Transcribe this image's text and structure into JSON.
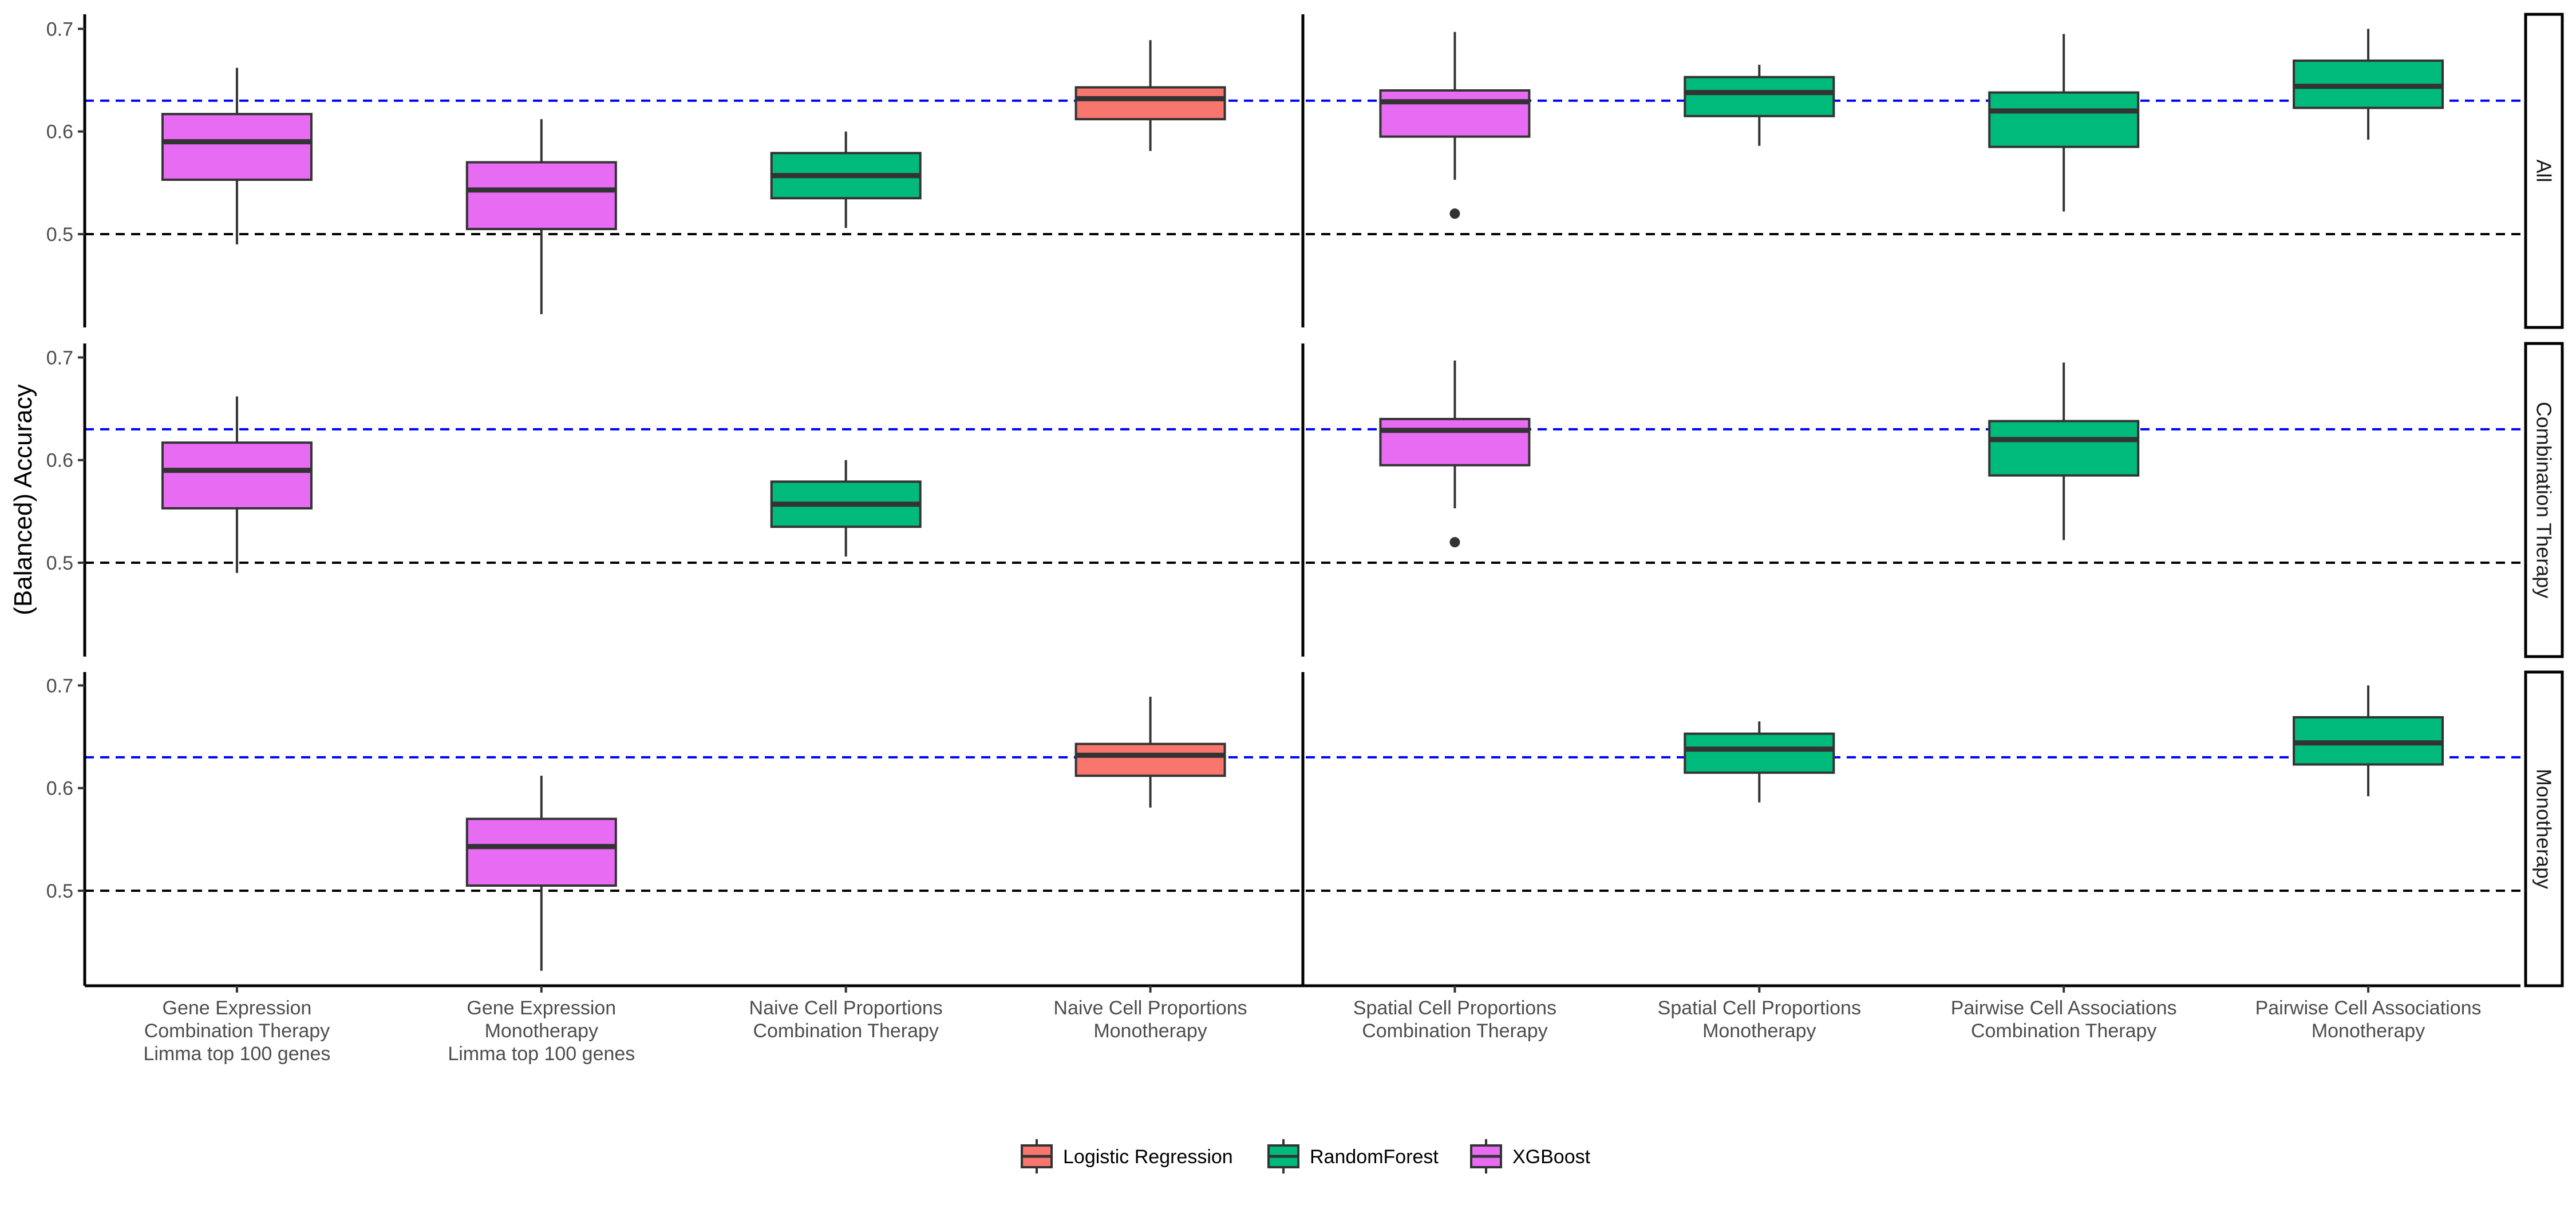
{
  "chart_data": {
    "type": "boxplot",
    "ylabel": "(Balanced) Accuracy",
    "y_ticks": [
      0.5,
      0.6,
      0.7
    ],
    "ylim": [
      0.41,
      0.715
    ],
    "reference_lines": [
      {
        "value": 0.5,
        "color": "#000000",
        "style": "dashed"
      },
      {
        "value": 0.63,
        "color": "#0000ff",
        "style": "dashed"
      }
    ],
    "categories": [
      {
        "lines": [
          "Gene Expression",
          "Combination Therapy",
          "Limma top 100 genes"
        ]
      },
      {
        "lines": [
          "Gene Expression",
          "Monotherapy",
          "Limma top 100 genes"
        ]
      },
      {
        "lines": [
          "Naive Cell Proportions",
          "Combination Therapy"
        ]
      },
      {
        "lines": [
          "Naive Cell Proportions",
          "Monotherapy"
        ]
      },
      {
        "lines": [
          "Spatial Cell Proportions",
          "Combination Therapy"
        ]
      },
      {
        "lines": [
          "Spatial Cell Proportions",
          "Monotherapy"
        ]
      },
      {
        "lines": [
          "Pairwise Cell Associations",
          "Combination Therapy"
        ]
      },
      {
        "lines": [
          "Pairwise Cell Associations",
          "Monotherapy"
        ]
      }
    ],
    "legend": {
      "position": "bottom",
      "items": [
        {
          "label": "Logistic Regression",
          "color": "#f8766d"
        },
        {
          "label": "RandomForest",
          "color": "#00ba7c"
        },
        {
          "label": "XGBoost",
          "color": "#e76bf3"
        }
      ]
    },
    "panels": [
      {
        "label": "All",
        "boxes": [
          {
            "category": 0,
            "model": "XGBoost",
            "min": 0.49,
            "q1": 0.553,
            "median": 0.59,
            "q3": 0.617,
            "max": 0.662,
            "outliers": []
          },
          {
            "category": 1,
            "model": "XGBoost",
            "min": 0.422,
            "q1": 0.505,
            "median": 0.543,
            "q3": 0.57,
            "max": 0.612,
            "outliers": []
          },
          {
            "category": 2,
            "model": "RandomForest",
            "min": 0.506,
            "q1": 0.535,
            "median": 0.557,
            "q3": 0.579,
            "max": 0.6,
            "outliers": []
          },
          {
            "category": 3,
            "model": "Logistic Regression",
            "min": 0.581,
            "q1": 0.612,
            "median": 0.632,
            "q3": 0.643,
            "max": 0.689,
            "outliers": []
          },
          {
            "category": 4,
            "model": "XGBoost",
            "min": 0.553,
            "q1": 0.595,
            "median": 0.629,
            "q3": 0.64,
            "max": 0.697,
            "outliers": [
              0.52
            ]
          },
          {
            "category": 5,
            "model": "RandomForest",
            "min": 0.586,
            "q1": 0.615,
            "median": 0.638,
            "q3": 0.653,
            "max": 0.665,
            "outliers": []
          },
          {
            "category": 6,
            "model": "RandomForest",
            "min": 0.522,
            "q1": 0.585,
            "median": 0.62,
            "q3": 0.638,
            "max": 0.695,
            "outliers": []
          },
          {
            "category": 7,
            "model": "RandomForest",
            "min": 0.592,
            "q1": 0.623,
            "median": 0.644,
            "q3": 0.669,
            "max": 0.7,
            "outliers": []
          }
        ]
      },
      {
        "label": "Combination Therapy",
        "boxes": [
          {
            "category": 0,
            "model": "XGBoost",
            "min": 0.49,
            "q1": 0.553,
            "median": 0.59,
            "q3": 0.617,
            "max": 0.662,
            "outliers": []
          },
          {
            "category": 2,
            "model": "RandomForest",
            "min": 0.506,
            "q1": 0.535,
            "median": 0.557,
            "q3": 0.579,
            "max": 0.6,
            "outliers": []
          },
          {
            "category": 4,
            "model": "XGBoost",
            "min": 0.553,
            "q1": 0.595,
            "median": 0.629,
            "q3": 0.64,
            "max": 0.697,
            "outliers": [
              0.52
            ]
          },
          {
            "category": 6,
            "model": "RandomForest",
            "min": 0.522,
            "q1": 0.585,
            "median": 0.62,
            "q3": 0.638,
            "max": 0.695,
            "outliers": []
          }
        ]
      },
      {
        "label": "Monotherapy",
        "boxes": [
          {
            "category": 1,
            "model": "XGBoost",
            "min": 0.422,
            "q1": 0.505,
            "median": 0.543,
            "q3": 0.57,
            "max": 0.612,
            "outliers": []
          },
          {
            "category": 3,
            "model": "Logistic Regression",
            "min": 0.581,
            "q1": 0.612,
            "median": 0.632,
            "q3": 0.643,
            "max": 0.689,
            "outliers": []
          },
          {
            "category": 5,
            "model": "RandomForest",
            "min": 0.586,
            "q1": 0.615,
            "median": 0.638,
            "q3": 0.653,
            "max": 0.665,
            "outliers": []
          },
          {
            "category": 7,
            "model": "RandomForest",
            "min": 0.592,
            "q1": 0.623,
            "median": 0.644,
            "q3": 0.669,
            "max": 0.7,
            "outliers": []
          }
        ]
      }
    ],
    "grid": false
  }
}
